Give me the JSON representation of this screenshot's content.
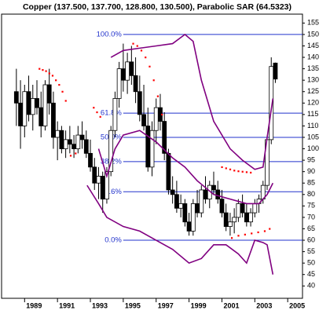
{
  "chart_data": {
    "type": "candlestick",
    "title": "Copper (137.500, 137.700, 128.800, 130.500), Parabolic SAR (64.5323)",
    "x": [
      1988.5,
      1988.75,
      1989,
      1989.25,
      1989.5,
      1989.75,
      1990,
      1990.25,
      1990.5,
      1990.75,
      1991,
      1991.25,
      1991.5,
      1991.75,
      1992,
      1992.25,
      1992.5,
      1992.75,
      1993,
      1993.25,
      1993.5,
      1993.75,
      1994,
      1994.25,
      1994.5,
      1994.75,
      1995,
      1995.25,
      1995.5,
      1995.75,
      1996,
      1996.25,
      1996.5,
      1996.75,
      1997,
      1997.25,
      1997.5,
      1997.75,
      1998,
      1998.25,
      1998.5,
      1998.75,
      1999,
      1999.25,
      1999.5,
      1999.75,
      2000,
      2000.25,
      2000.5,
      2000.75,
      2001,
      2001.25,
      2001.5,
      2001.75,
      2002,
      2002.25,
      2002.5,
      2002.75,
      2003,
      2003.25,
      2003.5,
      2003.75,
      2004,
      2004.25
    ],
    "open": [
      125,
      120,
      110,
      125,
      115,
      122,
      118,
      110,
      128,
      120,
      105,
      108,
      100,
      104,
      102,
      100,
      106,
      104,
      98,
      92,
      85,
      88,
      78,
      90,
      108,
      122,
      135,
      130,
      138,
      132,
      125,
      115,
      110,
      92,
      108,
      118,
      112,
      98,
      82,
      80,
      74,
      76,
      68,
      64,
      76,
      72,
      82,
      78,
      84,
      82,
      78,
      72,
      66,
      68,
      70,
      76,
      72,
      68,
      72,
      76,
      78,
      84,
      104,
      137.5
    ],
    "high": [
      135,
      130,
      128,
      132,
      128,
      130,
      125,
      130,
      135,
      125,
      112,
      110,
      108,
      110,
      106,
      110,
      112,
      108,
      104,
      96,
      92,
      90,
      92,
      110,
      125,
      138,
      146,
      142,
      145,
      140,
      132,
      128,
      118,
      112,
      122,
      124,
      116,
      100,
      88,
      86,
      80,
      78,
      72,
      78,
      82,
      84,
      88,
      86,
      90,
      86,
      82,
      76,
      72,
      74,
      78,
      80,
      76,
      74,
      78,
      80,
      86,
      106,
      140,
      137.7
    ],
    "low": [
      110,
      100,
      105,
      112,
      108,
      115,
      105,
      108,
      115,
      100,
      95,
      98,
      96,
      98,
      96,
      98,
      100,
      96,
      90,
      82,
      78,
      72,
      76,
      88,
      105,
      118,
      125,
      124,
      128,
      120,
      112,
      108,
      90,
      88,
      102,
      108,
      95,
      80,
      76,
      72,
      70,
      66,
      62,
      62,
      70,
      70,
      76,
      74,
      80,
      76,
      70,
      64,
      62,
      63,
      68,
      70,
      66,
      66,
      70,
      72,
      76,
      82,
      102,
      128.8
    ],
    "close": [
      120,
      110,
      125,
      115,
      122,
      118,
      110,
      128,
      120,
      105,
      108,
      100,
      104,
      102,
      100,
      106,
      104,
      98,
      92,
      85,
      88,
      78,
      90,
      108,
      122,
      135,
      130,
      138,
      132,
      125,
      115,
      110,
      92,
      108,
      118,
      112,
      98,
      82,
      80,
      74,
      76,
      68,
      64,
      76,
      72,
      82,
      78,
      84,
      82,
      78,
      72,
      66,
      68,
      70,
      76,
      72,
      68,
      72,
      76,
      78,
      84,
      104,
      136,
      130.5
    ],
    "up_color": "#ffffff",
    "down_color": "#000000",
    "bands": {
      "color": "#800080",
      "upper": {
        "x": [
          1994.25,
          1995,
          1996,
          1997,
          1998,
          1998.75,
          1999.25,
          1999.75,
          2000.5,
          2001.5,
          2002.25,
          2003,
          2003.5,
          2003.75,
          2004.1
        ],
        "values": [
          140,
          143,
          144,
          145,
          146,
          150,
          147,
          130,
          112,
          100,
          95,
          91,
          92,
          105,
          122
        ]
      },
      "middle": {
        "x": [
          1993.5,
          1994,
          1994.5,
          1995,
          1996,
          1997,
          1998,
          1998.75,
          1999.5,
          2000.5,
          2001.5,
          2002.5,
          2003.25,
          2003.75,
          2004.1
        ],
        "values": [
          100,
          88,
          100,
          106,
          108,
          103,
          96,
          92,
          86,
          80,
          78,
          76,
          76,
          80,
          85
        ]
      },
      "lower": {
        "x": [
          1992.8,
          1993.5,
          1994,
          1995,
          1996,
          1997,
          1998,
          1999,
          1999.75,
          2000.5,
          2001.25,
          2002,
          2002.5,
          2003,
          2003.5,
          2003.75,
          2004.1
        ],
        "values": [
          84,
          76,
          70,
          66,
          64,
          60,
          56,
          50,
          52,
          58,
          58,
          54,
          50,
          60,
          59,
          58,
          45
        ]
      }
    },
    "sar": {
      "color": "#ff0000",
      "x": [
        1989.9,
        1990.1,
        1990.3,
        1990.5,
        1990.7,
        1990.9,
        1991.1,
        1991.3,
        1991.5,
        1991.8,
        1992.1,
        1993.2,
        1993.4,
        1993.6,
        1995.6,
        1995.85,
        1996.1,
        1996.35,
        1996.6,
        1996.85,
        1997.1,
        1997.35,
        2001.0,
        2001.25,
        2001.5,
        2001.75,
        2002.0,
        2002.25,
        2002.5,
        2002.75,
        2001.6,
        2002.0,
        2002.4,
        2002.8,
        2003.2,
        2003.6,
        2003.9
      ],
      "values": [
        135,
        134.5,
        134,
        133,
        132,
        130,
        128,
        125,
        121,
        97,
        98,
        118,
        116,
        114,
        146,
        145,
        143,
        140,
        136,
        130,
        123,
        115,
        92,
        91.5,
        91,
        90.5,
        90.2,
        90,
        89.8,
        89.6,
        61,
        62,
        62.5,
        63,
        63.5,
        64,
        65
      ]
    },
    "fib": {
      "color": "#2233cc",
      "start": 1995,
      "levels": [
        {
          "value": 150,
          "label": "100.0%"
        },
        {
          "value": 115.6,
          "label": "61.8%"
        },
        {
          "value": 105,
          "label": "50.0%"
        },
        {
          "value": 94.4,
          "label": "38.2%"
        },
        {
          "value": 81.2,
          "label": "23.6%"
        },
        {
          "value": 60,
          "label": "0.0%"
        }
      ]
    },
    "xlim": [
      1987.6,
      2005.9
    ],
    "ylim": [
      34.6,
      158.9
    ],
    "xticks": [
      1989,
      1991,
      1993,
      1995,
      1997,
      1999,
      2001,
      2003,
      2005
    ],
    "yticks": [
      40,
      45,
      50,
      55,
      60,
      65,
      70,
      75,
      80,
      85,
      90,
      95,
      100,
      105,
      110,
      115,
      120,
      125,
      130,
      135,
      140,
      145,
      150,
      155
    ]
  }
}
